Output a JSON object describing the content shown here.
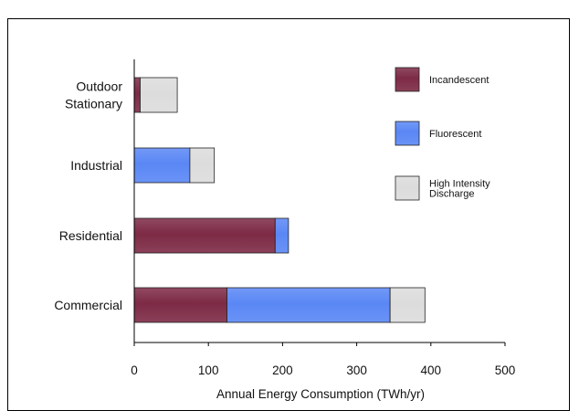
{
  "chart_data": {
    "type": "bar",
    "orientation": "horizontal",
    "stacked": true,
    "categories": [
      "Commercial",
      "Residential",
      "Industrial",
      "Outdoor Stationary"
    ],
    "category_lines": [
      [
        "Commercial"
      ],
      [
        "Residential"
      ],
      [
        "Industrial"
      ],
      [
        "Outdoor",
        "Stationary"
      ]
    ],
    "series": [
      {
        "name": "Incandescent",
        "values": [
          125,
          190,
          0,
          8
        ],
        "color": "#7d2a45"
      },
      {
        "name": "Fluorescent",
        "values": [
          220,
          18,
          75,
          0
        ],
        "color": "#5a87f5"
      },
      {
        "name": "High Intensity Discharge",
        "values": [
          47,
          0,
          33,
          50
        ],
        "color": "#dcdcdc"
      }
    ],
    "legend_lines": [
      [
        "Incandescent"
      ],
      [
        "Fluorescent"
      ],
      [
        "High Intensity",
        "Discharge"
      ]
    ],
    "xlabel": "Annual Energy Consumption (TWh/yr)",
    "xlim": [
      0,
      500
    ],
    "xticks": [
      0,
      100,
      200,
      300,
      400,
      500
    ],
    "grid": false,
    "legend_position": "right"
  }
}
